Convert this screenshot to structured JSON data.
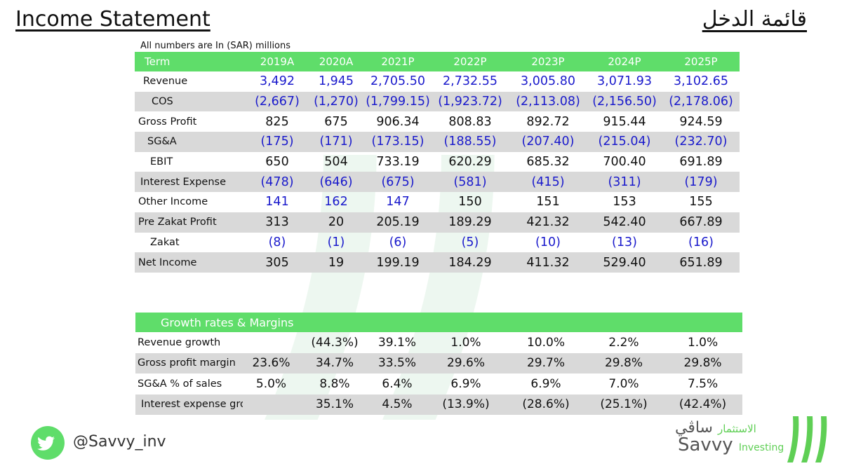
{
  "title_en": "Income Statement",
  "title_ar": "قائمة الدخل",
  "note": "All numbers are In (SAR) millions",
  "income": {
    "headers": [
      "Term",
      "2019A",
      "2020A",
      "2021P",
      "2022P",
      "2023P",
      "2024P",
      "2025P"
    ],
    "rows": [
      {
        "label": "Revenue",
        "indent": 12,
        "values": [
          "3,492",
          "1,945",
          "2,705.50",
          "2,732.55",
          "3,005.80",
          "3,071.93",
          "3,102.65"
        ]
      },
      {
        "label": "COS",
        "indent": 24,
        "values": [
          "(2,667)",
          "(1,270)",
          "(1,799.15)",
          "(1,923.72)",
          "(2,113.08)",
          "(2,156.50)",
          "(2,178.06)"
        ]
      },
      {
        "label": "Gross Profit",
        "indent": 5,
        "values": [
          "825",
          "675",
          "906.34",
          "808.83",
          "892.72",
          "915.44",
          "924.59"
        ]
      },
      {
        "label": "SG&A",
        "indent": 18,
        "values": [
          "(175)",
          "(171)",
          "(173.15)",
          "(188.55)",
          "(207.40)",
          "(215.04)",
          "(232.70)"
        ]
      },
      {
        "label": "EBIT",
        "indent": 22,
        "values": [
          "650",
          "504",
          "733.19",
          "620.29",
          "685.32",
          "700.40",
          "691.89"
        ]
      },
      {
        "label": "Interest Expense",
        "indent": 8,
        "values": [
          "(478)",
          "(646)",
          "(675)",
          "(581)",
          "(415)",
          "(311)",
          "(179)"
        ]
      },
      {
        "label": "Other Income",
        "indent": 5,
        "values": [
          "141",
          "162",
          "147",
          "150",
          "151",
          "153",
          "155"
        ]
      },
      {
        "label": "Pre Zakat Profit",
        "indent": 5,
        "values": [
          "313",
          "20",
          "205.19",
          "189.29",
          "421.32",
          "542.40",
          "667.89"
        ]
      },
      {
        "label": "Zakat",
        "indent": 22,
        "values": [
          "(8)",
          "(1)",
          "(6)",
          "(5)",
          "(10)",
          "(13)",
          "(16)"
        ]
      },
      {
        "label": "Net Income",
        "indent": 5,
        "values": [
          "305",
          "19",
          "199.19",
          "184.29",
          "411.32",
          "529.40",
          "651.89"
        ]
      }
    ]
  },
  "growth": {
    "header": "Growth rates & Margins",
    "rows": [
      {
        "label": "Revenue growth",
        "indent": 3,
        "values": [
          "",
          "(44.3%)",
          "39.1%",
          "1.0%",
          "10.0%",
          "2.2%",
          "1.0%"
        ]
      },
      {
        "label": "Gross profit margin",
        "indent": 3,
        "values": [
          "23.6%",
          "34.7%",
          "33.5%",
          "29.6%",
          "29.7%",
          "29.8%",
          "29.8%"
        ]
      },
      {
        "label": "SG&A % of sales",
        "indent": 3,
        "values": [
          "5.0%",
          "8.8%",
          "6.4%",
          "6.9%",
          "6.9%",
          "7.0%",
          "7.5%"
        ]
      },
      {
        "label": "Interest expense growth",
        "indent": 8,
        "values": [
          "",
          "35.1%",
          "4.5%",
          "(13.9%)",
          "(28.6%)",
          "(25.1%)",
          "(42.4%)"
        ]
      }
    ]
  },
  "footer": {
    "twitter_icon": "twitter-bird-icon",
    "handle": "@Savvy_inv",
    "logo_ar_main": "ساڤي",
    "logo_ar_sub": "الاستثمار",
    "logo_en_main": "Savvy",
    "logo_en_sub": "Investing"
  },
  "colors": {
    "accent": "#5fdd6a",
    "shade": "#d9d9d9",
    "blue_values": "#1a1acc"
  }
}
